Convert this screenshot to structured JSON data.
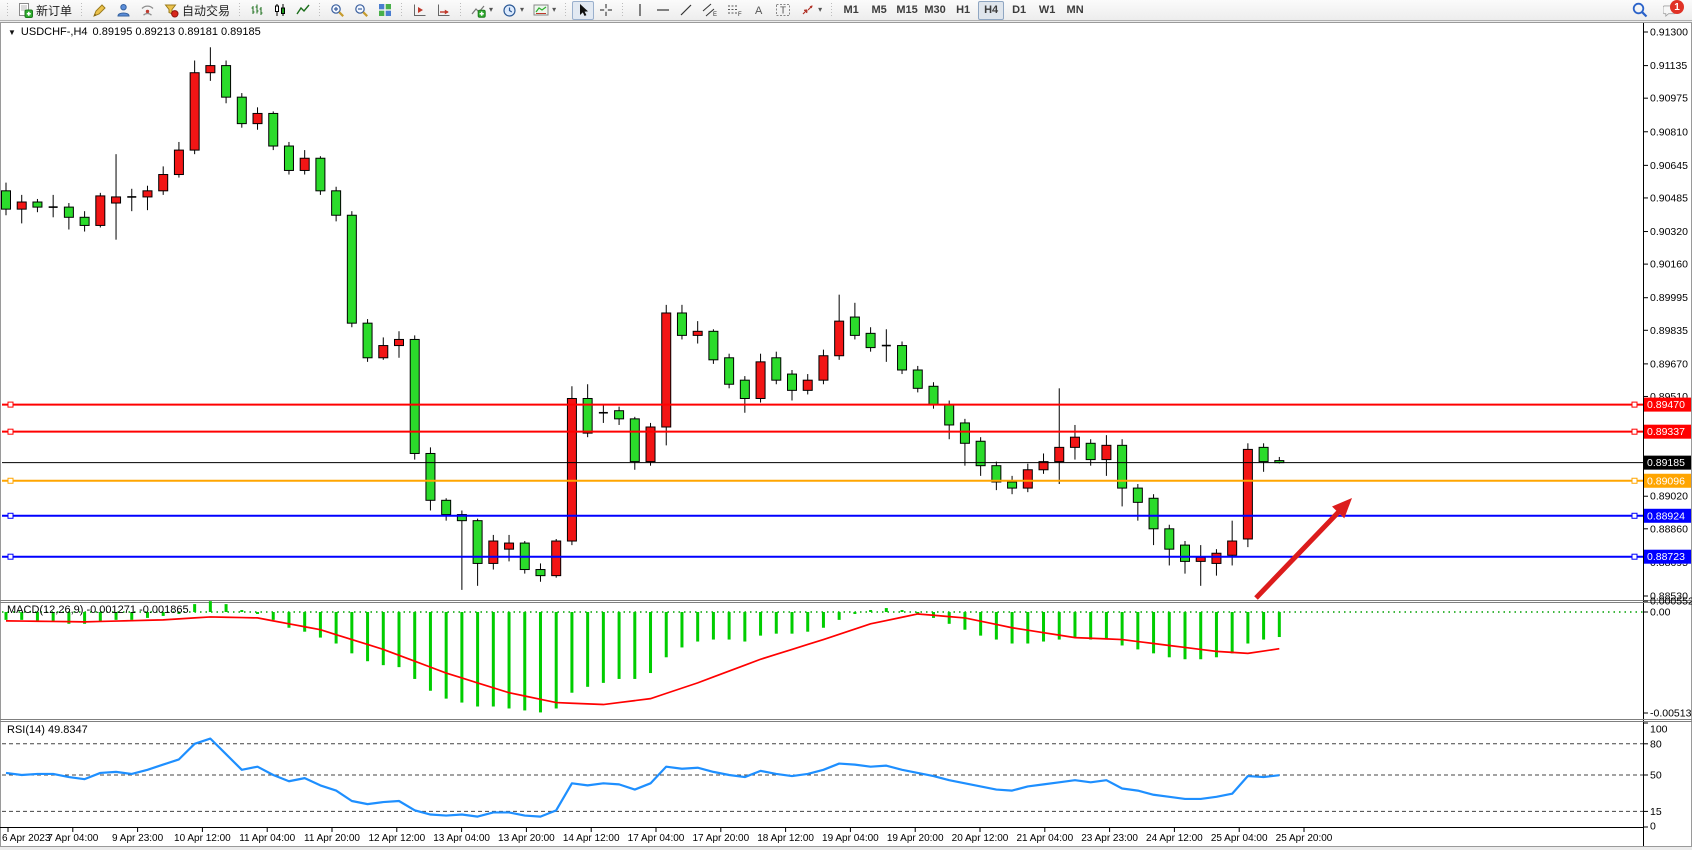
{
  "toolbar": {
    "new_order_label": "新订单",
    "autotrade_label": "自动交易",
    "timeframes": [
      "M1",
      "M5",
      "M15",
      "M30",
      "H1",
      "H4",
      "D1",
      "W1",
      "MN"
    ],
    "active_timeframe": "H4",
    "notification_count": "1"
  },
  "chart": {
    "title_symbol": "USDCHF-,H4",
    "title_ohlc": "0.89195 0.89213 0.89181 0.89185",
    "macd_label": "MACD(12,26,9) -0.001271 -0.001865",
    "rsi_label": "RSI(14) 49.8347"
  },
  "chart_data": {
    "type": "candlestick",
    "symbol": "USDCHF-",
    "period": "H4",
    "current_bar": {
      "open": 0.89195,
      "high": 0.89213,
      "low": 0.89181,
      "close": 0.89185
    },
    "price_axis": {
      "max": 0.913,
      "min": 0.8853,
      "ticks": [
        0.913,
        0.91135,
        0.90975,
        0.9081,
        0.90645,
        0.90485,
        0.9032,
        0.9016,
        0.89995,
        0.89835,
        0.8967,
        0.8951,
        0.8902,
        0.8886,
        0.88695,
        0.8853
      ]
    },
    "hlines": [
      {
        "price": 0.8947,
        "color": "#ff0000",
        "width": 2,
        "marker": true
      },
      {
        "price": 0.89337,
        "color": "#ff0000",
        "width": 2,
        "marker": true
      },
      {
        "price": 0.89185,
        "color": "#000000",
        "width": 1,
        "marker": false
      },
      {
        "price": 0.89096,
        "color": "#ffa500",
        "width": 2,
        "marker": true
      },
      {
        "price": 0.88924,
        "color": "#0000ff",
        "width": 2,
        "marker": true
      },
      {
        "price": 0.88723,
        "color": "#0000ff",
        "width": 2,
        "marker": true
      }
    ],
    "time_labels": [
      "6 Apr 2023",
      "7 Apr 04:00",
      "9 Apr 23:00",
      "10 Apr 12:00",
      "11 Apr 04:00",
      "11 Apr 20:00",
      "12 Apr 12:00",
      "13 Apr 04:00",
      "13 Apr 20:00",
      "14 Apr 12:00",
      "17 Apr 04:00",
      "17 Apr 20:00",
      "18 Apr 12:00",
      "19 Apr 04:00",
      "19 Apr 20:00",
      "20 Apr 12:00",
      "21 Apr 04:00",
      "23 Apr 23:00",
      "24 Apr 12:00",
      "25 Apr 04:00",
      "25 Apr 20:00"
    ],
    "candles": [
      [
        0.9052,
        0.9056,
        0.904,
        0.9043
      ],
      [
        0.9043,
        0.905,
        0.9036,
        0.90465
      ],
      [
        0.90465,
        0.9048,
        0.90415,
        0.9044
      ],
      [
        0.9044,
        0.905,
        0.9039,
        0.9044
      ],
      [
        0.9044,
        0.9046,
        0.9033,
        0.9039
      ],
      [
        0.9039,
        0.9042,
        0.9032,
        0.9035
      ],
      [
        0.9035,
        0.9051,
        0.9034,
        0.90495
      ],
      [
        0.9046,
        0.907,
        0.9028,
        0.9049
      ],
      [
        0.9049,
        0.9053,
        0.9042,
        0.9049
      ],
      [
        0.9049,
        0.90545,
        0.90425,
        0.9052
      ],
      [
        0.9052,
        0.9064,
        0.905,
        0.906
      ],
      [
        0.906,
        0.9076,
        0.90585,
        0.9072
      ],
      [
        0.9072,
        0.9116,
        0.907,
        0.911
      ],
      [
        0.911,
        0.91225,
        0.9106,
        0.91135
      ],
      [
        0.91135,
        0.9116,
        0.9095,
        0.9098
      ],
      [
        0.9098,
        0.91,
        0.9083,
        0.9085
      ],
      [
        0.9085,
        0.9093,
        0.9082,
        0.909
      ],
      [
        0.909,
        0.9091,
        0.9072,
        0.9074
      ],
      [
        0.9074,
        0.9076,
        0.906,
        0.9062
      ],
      [
        0.9062,
        0.9072,
        0.906,
        0.9068
      ],
      [
        0.9068,
        0.9069,
        0.905,
        0.9052
      ],
      [
        0.9052,
        0.9054,
        0.9037,
        0.904
      ],
      [
        0.904,
        0.9042,
        0.8985,
        0.8987
      ],
      [
        0.8987,
        0.8989,
        0.8968,
        0.897
      ],
      [
        0.897,
        0.898,
        0.8969,
        0.8976
      ],
      [
        0.8976,
        0.8983,
        0.897,
        0.8979
      ],
      [
        0.8979,
        0.8981,
        0.892,
        0.8923
      ],
      [
        0.8923,
        0.8926,
        0.8895,
        0.89
      ],
      [
        0.89,
        0.8901,
        0.889,
        0.8893
      ],
      [
        0.8893,
        0.8895,
        0.8856,
        0.889
      ],
      [
        0.889,
        0.8891,
        0.8858,
        0.8869
      ],
      [
        0.8869,
        0.8883,
        0.8866,
        0.888
      ],
      [
        0.8876,
        0.8883,
        0.887,
        0.8879
      ],
      [
        0.8879,
        0.888,
        0.8864,
        0.8866
      ],
      [
        0.8866,
        0.8869,
        0.886,
        0.8863
      ],
      [
        0.8863,
        0.8881,
        0.8862,
        0.888
      ],
      [
        0.888,
        0.8956,
        0.8878,
        0.895
      ],
      [
        0.895,
        0.8957,
        0.8931,
        0.8933
      ],
      [
        0.8943,
        0.8947,
        0.8938,
        0.8943
      ],
      [
        0.8944,
        0.8946,
        0.8937,
        0.894
      ],
      [
        0.894,
        0.8941,
        0.8915,
        0.8919
      ],
      [
        0.8919,
        0.8938,
        0.8917,
        0.8936
      ],
      [
        0.8936,
        0.8996,
        0.8927,
        0.8992
      ],
      [
        0.8992,
        0.8996,
        0.8979,
        0.8981
      ],
      [
        0.8981,
        0.8988,
        0.8977,
        0.8983
      ],
      [
        0.8983,
        0.8984,
        0.8967,
        0.8969
      ],
      [
        0.897,
        0.8972,
        0.8955,
        0.8957
      ],
      [
        0.8959,
        0.8961,
        0.8943,
        0.895
      ],
      [
        0.895,
        0.8972,
        0.8948,
        0.8968
      ],
      [
        0.897,
        0.8973,
        0.8957,
        0.8959
      ],
      [
        0.8962,
        0.8964,
        0.8949,
        0.8954
      ],
      [
        0.8954,
        0.8962,
        0.8952,
        0.8959
      ],
      [
        0.8959,
        0.8974,
        0.8957,
        0.8971
      ],
      [
        0.8971,
        0.9001,
        0.8969,
        0.8988
      ],
      [
        0.899,
        0.8997,
        0.8979,
        0.8981
      ],
      [
        0.8982,
        0.8985,
        0.8973,
        0.8975
      ],
      [
        0.8976,
        0.8984,
        0.8968,
        0.8976
      ],
      [
        0.8976,
        0.8978,
        0.8962,
        0.8964
      ],
      [
        0.8964,
        0.8966,
        0.8953,
        0.8955
      ],
      [
        0.8956,
        0.8958,
        0.8945,
        0.8947
      ],
      [
        0.8947,
        0.8949,
        0.893,
        0.8937
      ],
      [
        0.8938,
        0.894,
        0.8917,
        0.8928
      ],
      [
        0.8929,
        0.8931,
        0.8912,
        0.8917
      ],
      [
        0.8917,
        0.8919,
        0.8905,
        0.8909
      ],
      [
        0.8909,
        0.8912,
        0.8903,
        0.8906
      ],
      [
        0.8906,
        0.8918,
        0.8904,
        0.8915
      ],
      [
        0.8915,
        0.8923,
        0.8913,
        0.8919
      ],
      [
        0.8919,
        0.8955,
        0.8908,
        0.8926
      ],
      [
        0.8926,
        0.8937,
        0.892,
        0.8931
      ],
      [
        0.8928,
        0.893,
        0.8917,
        0.892
      ],
      [
        0.892,
        0.8932,
        0.8912,
        0.8927
      ],
      [
        0.8927,
        0.893,
        0.8897,
        0.8906
      ],
      [
        0.8906,
        0.8908,
        0.889,
        0.8899
      ],
      [
        0.8901,
        0.8903,
        0.8878,
        0.8886
      ],
      [
        0.8886,
        0.8888,
        0.8868,
        0.8876
      ],
      [
        0.8878,
        0.888,
        0.8864,
        0.887
      ],
      [
        0.887,
        0.8878,
        0.8858,
        0.8872
      ],
      [
        0.8869,
        0.8876,
        0.8863,
        0.8874
      ],
      [
        0.8873,
        0.889,
        0.8868,
        0.888
      ],
      [
        0.8881,
        0.8928,
        0.8877,
        0.8925
      ],
      [
        0.8926,
        0.8928,
        0.8914,
        0.8919
      ],
      [
        0.89195,
        0.89213,
        0.89181,
        0.89185
      ]
    ],
    "macd": {
      "label_values": [
        -0.001271,
        -0.001865
      ],
      "axis_labels": [
        {
          "text": "0.000552",
          "value": 0.000552
        },
        {
          "text": "0.00",
          "value": 0.0
        },
        {
          "text": "-0.00513",
          "value": -0.00513
        }
      ],
      "axis_min": -0.00513,
      "axis_max": 0.000552,
      "histogram": [
        -0.0004,
        -0.0004,
        -0.0005,
        -0.0005,
        -0.0006,
        -0.0006,
        -0.0005,
        -0.0004,
        -0.0004,
        -0.0003,
        -0.0002,
        -0.0001,
        0.0004,
        0.00055,
        0.0004,
        0.0001,
        -0.0001,
        -0.0004,
        -0.0008,
        -0.001,
        -0.0013,
        -0.0016,
        -0.0021,
        -0.0025,
        -0.0027,
        -0.0028,
        -0.0034,
        -0.004,
        -0.0044,
        -0.0046,
        -0.0048,
        -0.0048,
        -0.0049,
        -0.005,
        -0.0051,
        -0.0049,
        -0.0041,
        -0.0038,
        -0.0036,
        -0.0034,
        -0.0034,
        -0.0031,
        -0.0023,
        -0.0018,
        -0.0015,
        -0.0014,
        -0.0014,
        -0.0015,
        -0.0012,
        -0.0011,
        -0.0011,
        -0.001,
        -0.0008,
        -0.0004,
        -0.0001,
        0.0001,
        0.0002,
        0.0001,
        -0.0001,
        -0.0003,
        -0.0006,
        -0.0009,
        -0.0012,
        -0.0014,
        -0.0016,
        -0.0016,
        -0.0015,
        -0.0014,
        -0.0013,
        -0.0014,
        -0.0014,
        -0.0017,
        -0.0019,
        -0.0021,
        -0.0023,
        -0.0024,
        -0.0024,
        -0.0023,
        -0.0021,
        -0.0016,
        -0.0014,
        -0.001271
      ],
      "signal_points": [
        [
          0,
          -0.00045
        ],
        [
          5,
          -0.0005
        ],
        [
          10,
          -0.0004
        ],
        [
          13,
          -0.00025
        ],
        [
          16,
          -0.0003
        ],
        [
          20,
          -0.0009
        ],
        [
          24,
          -0.0019
        ],
        [
          28,
          -0.0031
        ],
        [
          32,
          -0.0041
        ],
        [
          35,
          -0.0046
        ],
        [
          38,
          -0.0047
        ],
        [
          41,
          -0.0044
        ],
        [
          44,
          -0.0036
        ],
        [
          48,
          -0.0024
        ],
        [
          52,
          -0.0014
        ],
        [
          55,
          -0.0006
        ],
        [
          58,
          -0.0001
        ],
        [
          61,
          -0.0003
        ],
        [
          64,
          -0.0008
        ],
        [
          68,
          -0.0013
        ],
        [
          71,
          -0.0014
        ],
        [
          74,
          -0.0017
        ],
        [
          77,
          -0.002
        ],
        [
          79,
          -0.0021
        ],
        [
          81,
          -0.001865
        ]
      ]
    },
    "rsi": {
      "current": 49.8347,
      "levels": [
        80,
        50,
        15
      ],
      "axis_labels": [
        100,
        80,
        50,
        15,
        0
      ],
      "values": [
        52,
        50,
        51,
        51,
        48,
        46,
        52,
        53,
        51,
        55,
        60,
        65,
        80,
        85,
        70,
        55,
        58,
        50,
        44,
        47,
        40,
        35,
        25,
        22,
        24,
        25,
        16,
        12,
        11,
        12,
        10,
        14,
        14,
        11,
        10,
        16,
        42,
        40,
        42,
        41,
        36,
        42,
        58,
        56,
        57,
        53,
        50,
        48,
        54,
        51,
        49,
        51,
        55,
        61,
        60,
        58,
        59,
        55,
        52,
        49,
        45,
        42,
        39,
        36,
        35,
        39,
        41,
        43,
        45,
        43,
        45,
        37,
        35,
        31,
        29,
        27,
        27,
        29,
        32,
        49,
        48,
        49.8
      ]
    },
    "arrow": {
      "from": [
        1256,
        598
      ],
      "to": [
        1352,
        498
      ],
      "color": "#dc1c1c"
    },
    "colors": {
      "bull_candle": "#f21515",
      "bear_candle": "#2bdb2b",
      "candle_border": "#000000",
      "macd_histogram": "#00cd00",
      "macd_zero_line": "#00a000",
      "macd_signal": "#ff0000",
      "rsi_line": "#1e8fff",
      "badge_text": "#ffffff"
    }
  }
}
